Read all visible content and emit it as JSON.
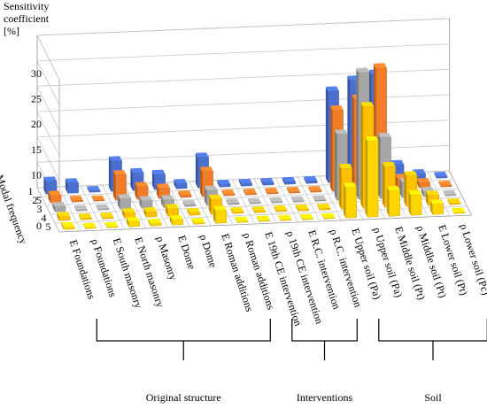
{
  "chart_data": {
    "type": "bar3d",
    "ylabel": "Sensitivity coefficient [%]",
    "zlabel": "Modal frequency",
    "categories": [
      "E Foundations",
      "ρ Foundations",
      "E South masonry",
      "E North masonry",
      "ρ Masonry",
      "E Dome",
      "ρ Dome",
      "E Roman additions",
      "ρ Roman additions",
      "E 19th CE intervention",
      "ρ 19th CE intervention",
      "E R.C. intervention",
      "ρ R.C. intervention",
      "E Upper soil (Pa)",
      "ρ Upper soil (Pa)",
      "E Middle soil (Pt)",
      "ρ Middle soil (Pt)",
      "E Lower soil (Pt)",
      "ρ Lower soil (Pc)"
    ],
    "series": [
      {
        "name": "1",
        "color": "#4a6fd1",
        "values": [
          2.5,
          2,
          0.3,
          6,
          3.5,
          3,
          1,
          6,
          0.5,
          0.5,
          0.5,
          0.5,
          0.5,
          18,
          20,
          21,
          3,
          1,
          0.3
        ]
      },
      {
        "name": "2",
        "color": "#f07c2a",
        "values": [
          1.5,
          0.3,
          0.2,
          5,
          2.5,
          2,
          0.5,
          5,
          0.3,
          0.3,
          0.3,
          0.3,
          0.3,
          16,
          18,
          24,
          2,
          1,
          0.3
        ]
      },
      {
        "name": "3",
        "color": "#a6a6a6",
        "values": [
          1,
          0.2,
          0.2,
          2,
          1.5,
          1.5,
          0.3,
          3,
          0.3,
          0.2,
          0.2,
          0.2,
          0.2,
          13,
          25,
          12,
          3,
          1,
          0.2
        ]
      },
      {
        "name": "4",
        "color": "#ffc000",
        "values": [
          0.8,
          0.3,
          0.3,
          1,
          1,
          1.5,
          0.5,
          3,
          0.3,
          0.3,
          0.3,
          0.3,
          0.3,
          8,
          20,
          8,
          6,
          2,
          0.3
        ]
      },
      {
        "name": "5",
        "color": "#ffd500",
        "values": [
          0.5,
          0.2,
          0.2,
          1,
          0.5,
          1,
          0.3,
          2.5,
          0.2,
          0.2,
          0.2,
          0.2,
          0.2,
          6,
          15,
          5,
          4,
          2,
          0.2
        ]
      }
    ],
    "groups": [
      {
        "label": "Original structure",
        "from": 0,
        "to": 8
      },
      {
        "label": "Interventions",
        "from": 9,
        "to": 12
      },
      {
        "label": "Soil",
        "from": 13,
        "to": 18
      }
    ],
    "ylim": [
      0,
      30
    ],
    "yticks": [
      0,
      5,
      10,
      15,
      20,
      25,
      30
    ],
    "grid": true
  }
}
